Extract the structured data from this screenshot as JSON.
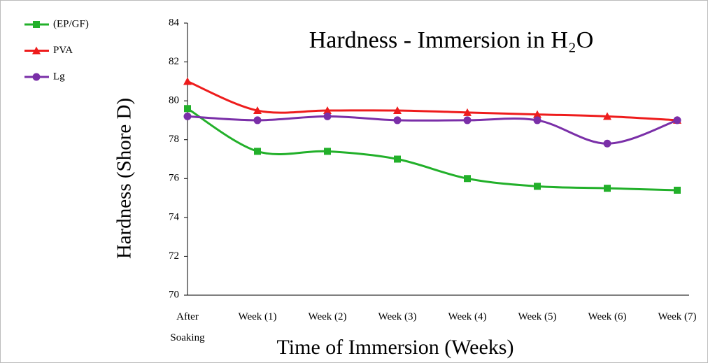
{
  "chart_data": {
    "type": "line",
    "title": "Hardness - Immersion in H₂O",
    "y_label": "Hardness  (Shore D)",
    "x_label": "Time of Immersion (Weeks)",
    "categories": [
      "After Soaking",
      "Week (1)",
      "Week (2)",
      "Week (3)",
      "Week (4)",
      "Week (5)",
      "Week (6)",
      "Week (7)"
    ],
    "series": [
      {
        "name": "(EP/GF)",
        "color": "#22b02a",
        "marker": "square",
        "values": [
          79.6,
          77.4,
          77.4,
          77.0,
          76.0,
          75.6,
          75.5,
          75.4
        ]
      },
      {
        "name": "PVA",
        "color": "#ee1c1c",
        "marker": "triangle",
        "values": [
          81.0,
          79.5,
          79.5,
          79.5,
          79.4,
          79.3,
          79.2,
          79.0
        ]
      },
      {
        "name": "Lg",
        "color": "#7a2fa8",
        "marker": "circle",
        "values": [
          79.2,
          79.0,
          79.2,
          79.0,
          79.0,
          79.0,
          77.8,
          79.0
        ]
      }
    ],
    "ylim": [
      70,
      84
    ],
    "yticks": [
      70,
      72,
      74,
      76,
      78,
      80,
      82,
      84
    ],
    "legend": "top-left",
    "grid": false
  }
}
